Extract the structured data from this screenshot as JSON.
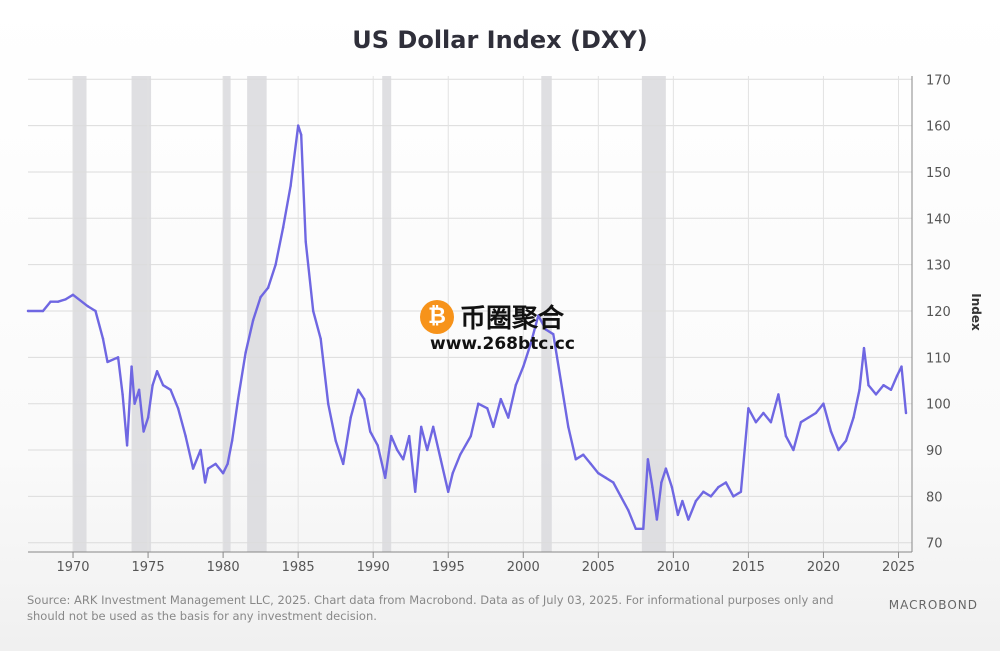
{
  "chart_data": {
    "type": "line",
    "title": "US Dollar Index (DXY)",
    "ylabel": "Index",
    "xlabel": "",
    "xlim": [
      1967,
      2025.9
    ],
    "ylim": [
      68,
      172
    ],
    "x_ticks": [
      1970,
      1975,
      1980,
      1985,
      1990,
      1995,
      2000,
      2005,
      2010,
      2015,
      2020,
      2025
    ],
    "y_ticks": [
      70,
      80,
      90,
      100,
      110,
      120,
      130,
      140,
      150,
      160,
      170
    ],
    "grid": true,
    "recessions": [
      [
        1970.0,
        1970.9
      ],
      [
        1973.9,
        1975.2
      ],
      [
        1980.0,
        1980.5
      ],
      [
        1981.6,
        1982.9
      ],
      [
        1990.6,
        1991.2
      ],
      [
        2001.2,
        2001.9
      ],
      [
        2007.9,
        2009.5
      ]
    ],
    "series": [
      {
        "color": "#6f67e2",
        "x": [
          1967.0,
          1968.0,
          1968.5,
          1969.0,
          1969.5,
          1970.0,
          1971.0,
          1971.5,
          1972.0,
          1972.3,
          1973.0,
          1973.3,
          1973.6,
          1973.9,
          1974.1,
          1974.4,
          1974.7,
          1975.0,
          1975.3,
          1975.6,
          1976.0,
          1976.5,
          1977.0,
          1977.5,
          1978.0,
          1978.5,
          1978.8,
          1979.0,
          1979.5,
          1980.0,
          1980.3,
          1980.6,
          1981.0,
          1981.5,
          1982.0,
          1982.5,
          1983.0,
          1983.5,
          1984.0,
          1984.5,
          1985.0,
          1985.2,
          1985.5,
          1986.0,
          1986.5,
          1987.0,
          1987.5,
          1988.0,
          1988.5,
          1989.0,
          1989.4,
          1989.8,
          1990.3,
          1990.8,
          1991.2,
          1991.6,
          1992.0,
          1992.4,
          1992.8,
          1993.2,
          1993.6,
          1994.0,
          1994.5,
          1995.0,
          1995.3,
          1995.8,
          1996.5,
          1997.0,
          1997.6,
          1998.0,
          1998.5,
          1999.0,
          1999.5,
          2000.0,
          2000.5,
          2001.0,
          2001.5,
          2002.0,
          2002.5,
          2003.0,
          2003.5,
          2004.0,
          2004.5,
          2005.0,
          2005.5,
          2006.0,
          2006.5,
          2007.0,
          2007.5,
          2008.0,
          2008.3,
          2008.6,
          2008.9,
          2009.2,
          2009.5,
          2009.9,
          2010.3,
          2010.6,
          2011.0,
          2011.5,
          2012.0,
          2012.5,
          2013.0,
          2013.5,
          2014.0,
          2014.5,
          2015.0,
          2015.5,
          2016.0,
          2016.5,
          2017.0,
          2017.5,
          2018.0,
          2018.5,
          2019.0,
          2019.5,
          2020.0,
          2020.5,
          2021.0,
          2021.5,
          2022.0,
          2022.4,
          2022.7,
          2023.0,
          2023.5,
          2024.0,
          2024.5,
          2024.9,
          2025.2,
          2025.5
        ],
        "y": [
          120,
          120,
          122,
          122,
          122.5,
          123.5,
          121,
          120,
          114,
          109,
          110,
          102,
          91,
          108,
          100,
          103,
          94,
          97,
          104,
          107,
          104,
          103,
          99,
          93,
          86,
          90,
          83,
          86,
          87,
          85,
          87,
          92,
          101,
          111,
          118,
          123,
          125,
          130,
          138,
          147,
          160,
          158,
          135,
          120,
          114,
          100,
          92,
          87,
          97,
          103,
          101,
          94,
          91,
          84,
          93,
          90,
          88,
          93,
          81,
          95,
          90,
          95,
          88,
          81,
          85,
          89,
          93,
          100,
          99,
          95,
          101,
          97,
          104,
          108,
          113,
          119,
          116,
          115,
          105,
          95,
          88,
          89,
          87,
          85,
          84,
          83,
          80,
          77,
          73,
          73,
          88,
          82,
          75,
          83,
          86,
          82,
          76,
          79,
          75,
          79,
          81,
          80,
          82,
          83,
          80,
          81,
          99,
          96,
          98,
          96,
          102,
          93,
          90,
          96,
          97,
          98,
          100,
          94,
          90,
          92,
          97,
          103,
          112,
          104,
          102,
          104,
          103,
          106,
          108,
          98
        ]
      }
    ]
  },
  "footer": {
    "source_text": "Source: ARK Investment Management LLC, 2025. Chart data from Macrobond. Data as of July 03, 2025. For informational purposes only and should not be used as the basis for any investment decision.",
    "brand": "MACROBOND"
  },
  "watermark": {
    "logo_glyph": "₿",
    "text": "币圈聚合",
    "url": "www.268btc.cc"
  }
}
